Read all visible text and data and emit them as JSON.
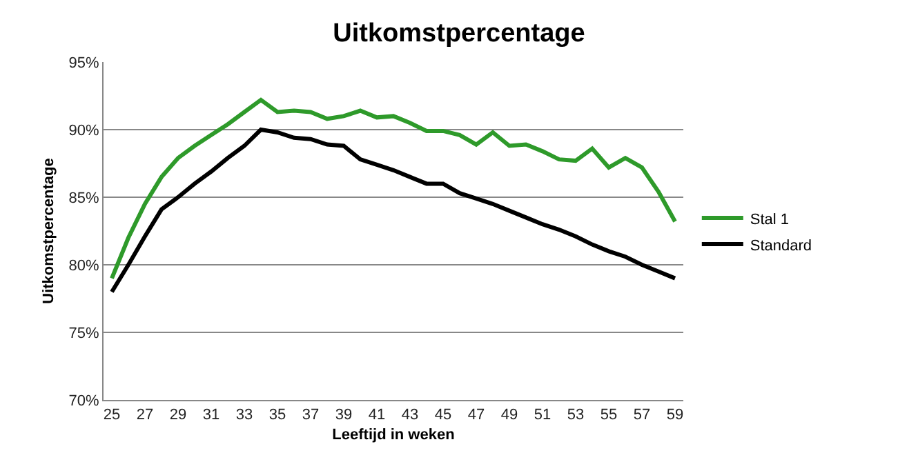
{
  "chart_data": {
    "type": "line",
    "title": "Uitkomstpercentage",
    "xlabel": "Leeftijd in weken",
    "ylabel": "Uitkomstpercentage",
    "x": [
      25,
      26,
      27,
      28,
      29,
      30,
      31,
      32,
      33,
      34,
      35,
      36,
      37,
      38,
      39,
      40,
      41,
      42,
      43,
      44,
      45,
      46,
      47,
      48,
      49,
      50,
      51,
      52,
      53,
      54,
      55,
      56,
      57,
      58,
      59
    ],
    "series": [
      {
        "name": "Stal 1",
        "color": "#2e9a2a",
        "values": [
          79.0,
          82.0,
          84.5,
          86.5,
          87.9,
          88.8,
          89.6,
          90.4,
          91.3,
          92.2,
          91.3,
          91.4,
          91.3,
          90.8,
          91.0,
          91.4,
          90.9,
          91.0,
          90.5,
          89.9,
          89.9,
          89.6,
          88.9,
          89.8,
          88.8,
          88.9,
          88.4,
          87.8,
          87.7,
          88.6,
          87.2,
          87.9,
          87.2,
          85.4,
          83.2
        ]
      },
      {
        "name": "Standard",
        "color": "#000000",
        "values": [
          78.0,
          80.0,
          82.1,
          84.1,
          85.0,
          86.0,
          86.9,
          87.9,
          88.8,
          90.0,
          89.8,
          89.4,
          89.3,
          88.9,
          88.8,
          87.8,
          87.4,
          87.0,
          86.5,
          86.0,
          86.0,
          85.3,
          84.9,
          84.5,
          84.0,
          83.5,
          83.0,
          82.6,
          82.1,
          81.5,
          81.0,
          80.6,
          80.0,
          79.5,
          79.0
        ]
      }
    ],
    "xlim": [
      24.5,
      59.5
    ],
    "xticks": [
      25,
      27,
      29,
      31,
      33,
      35,
      37,
      39,
      41,
      43,
      45,
      47,
      49,
      51,
      53,
      55,
      57,
      59
    ],
    "ylim": [
      70,
      95
    ],
    "yticks": [
      {
        "value": 70,
        "label": "70%"
      },
      {
        "value": 75,
        "label": "75%"
      },
      {
        "value": 80,
        "label": "80%"
      },
      {
        "value": 85,
        "label": "85%"
      },
      {
        "value": 90,
        "label": "90%"
      },
      {
        "value": 95,
        "label": "95%"
      }
    ],
    "grid": "y",
    "legend": "right",
    "marker": "none",
    "line_style": "solid"
  }
}
